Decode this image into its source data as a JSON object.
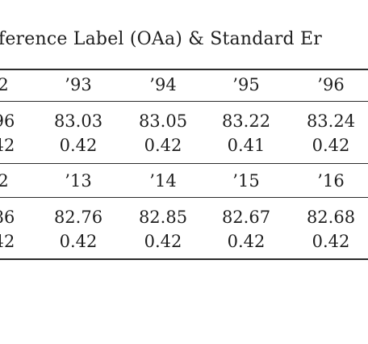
{
  "caption": "ference Label (OAa) & Standard Er",
  "block1": {
    "header": [
      "2",
      "’93",
      "’94",
      "’95",
      "’96"
    ],
    "means": [
      "96",
      "83.03",
      "83.05",
      "83.22",
      "83.24"
    ],
    "errors": [
      "42",
      "0.42",
      "0.42",
      "0.41",
      "0.42"
    ]
  },
  "block2": {
    "header": [
      "2",
      "’13",
      "’14",
      "’15",
      "’16"
    ],
    "means": [
      "86",
      "82.76",
      "82.85",
      "82.67",
      "82.68"
    ],
    "errors": [
      "42",
      "0.42",
      "0.42",
      "0.42",
      "0.42"
    ]
  }
}
